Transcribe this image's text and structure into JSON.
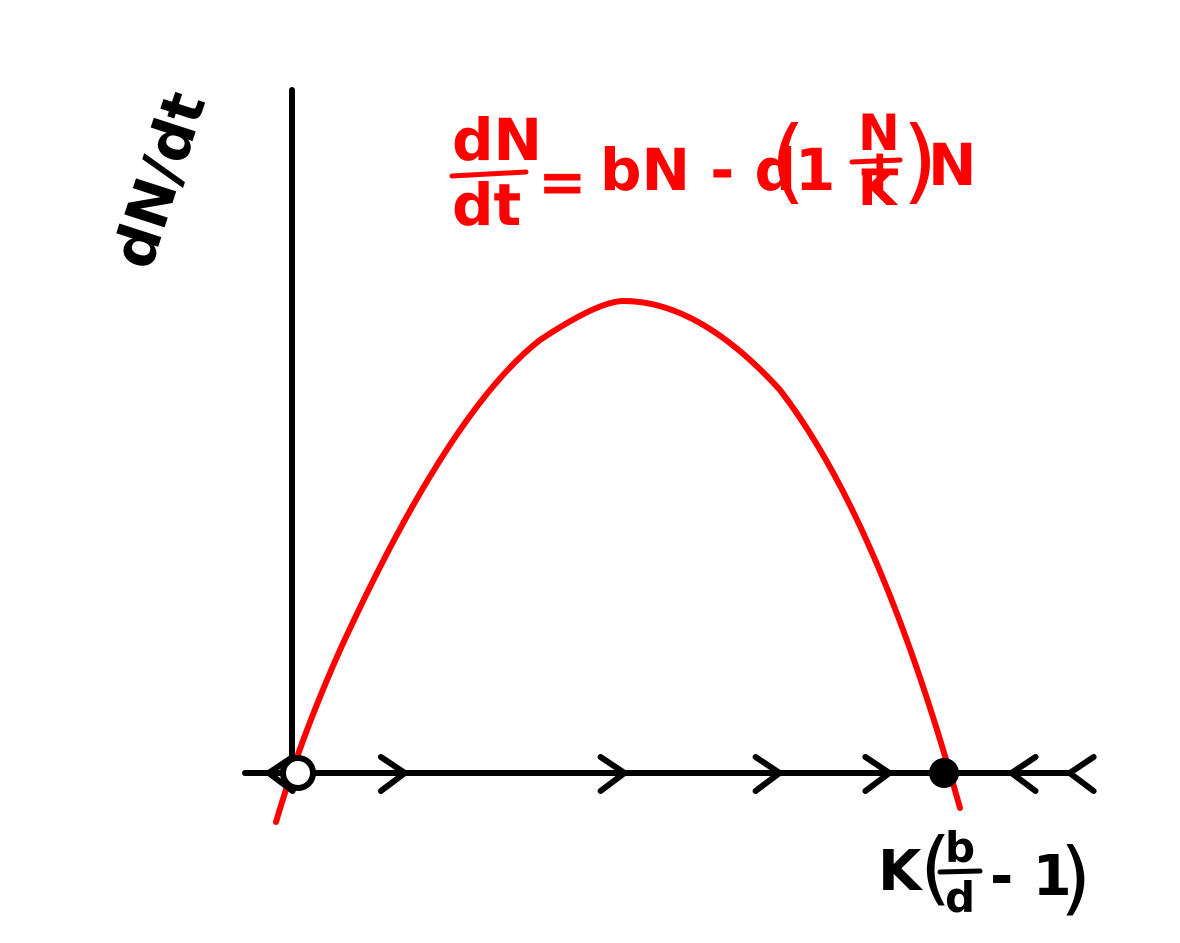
{
  "colors": {
    "ink": "#000000",
    "curve": "#ff0000",
    "background": "#ffffff"
  },
  "y_axis_label": "dN/dt",
  "equation": {
    "lhs_numerator": "dN",
    "lhs_denominator": "dt",
    "equals": "=",
    "rhs_start": "bN - d",
    "open_paren": "(",
    "one_plus": "1 +",
    "inner_numerator": "N",
    "inner_denominator": "K",
    "close_paren": ")",
    "rhs_end": "N"
  },
  "equilibrium_label": {
    "prefix": "K",
    "open_paren": "(",
    "numerator": "b",
    "denominator": "d",
    "minus_one": "- 1",
    "close_paren": ")"
  },
  "equilibria": [
    {
      "name": "unstable-equilibrium",
      "n_fraction": 0.0,
      "style": "open"
    },
    {
      "name": "stable-equilibrium",
      "n_fraction": 1.0,
      "style": "filled"
    }
  ],
  "flow_arrows": [
    {
      "n_fraction": -0.03,
      "direction": "left"
    },
    {
      "n_fraction": 0.15,
      "direction": "right"
    },
    {
      "n_fraction": 0.49,
      "direction": "right"
    },
    {
      "n_fraction": 0.73,
      "direction": "right"
    },
    {
      "n_fraction": 0.9,
      "direction": "right"
    },
    {
      "n_fraction": 1.12,
      "direction": "left"
    },
    {
      "n_fraction": 1.21,
      "direction": "left"
    }
  ]
}
